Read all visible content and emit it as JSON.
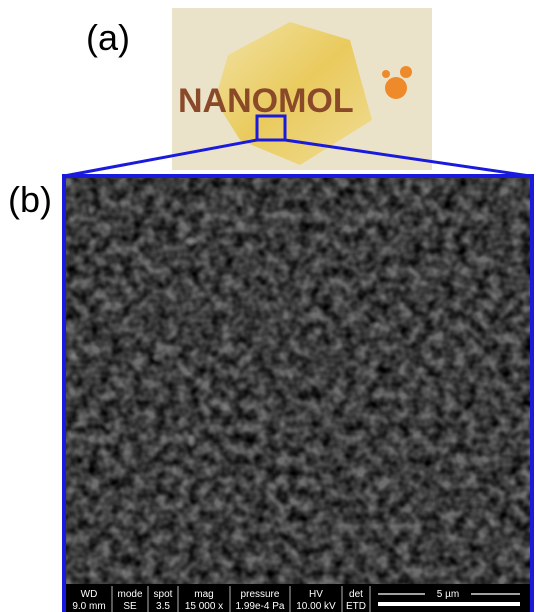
{
  "labels": {
    "a": "(a)",
    "b": "(b)"
  },
  "photo": {
    "logo": "NANOMOL"
  },
  "sem_bar": {
    "headers": [
      "WD",
      "mode",
      "spot",
      "mag",
      "pressure",
      "HV",
      "det"
    ],
    "values": [
      "9.0 mm",
      "SE",
      "3.5",
      "15 000 x",
      "1.99e-4 Pa",
      "10.00 kV",
      "ETD"
    ],
    "scale": "5 µm"
  }
}
